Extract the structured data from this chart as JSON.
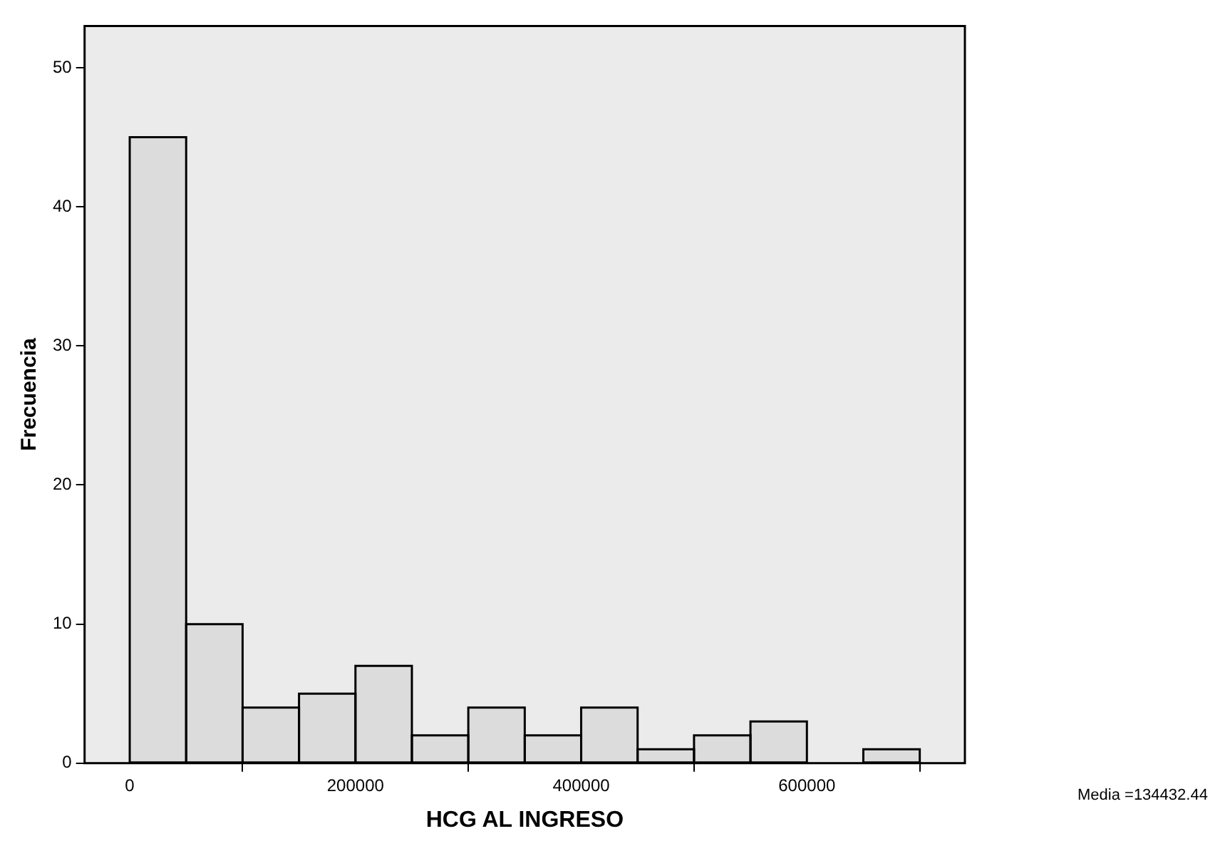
{
  "chart_data": {
    "type": "histogram",
    "xlabel": "HCG AL INGRESO",
    "ylabel": "Frecuencia",
    "bins": [
      0,
      50000,
      100000,
      150000,
      200000,
      250000,
      300000,
      350000,
      400000,
      450000,
      500000,
      550000,
      600000,
      650000,
      700000
    ],
    "values": [
      45,
      10,
      4,
      5,
      7,
      2,
      4,
      2,
      4,
      1,
      2,
      3,
      0,
      1
    ],
    "color": "#dcdcdc",
    "xlim": [
      -40000,
      740000
    ],
    "xticks": [
      0,
      200000,
      400000,
      600000
    ],
    "ylim": [
      0,
      53
    ],
    "yticks": [
      0,
      10,
      20,
      30,
      40,
      50
    ],
    "grid": false,
    "annotations": [
      "Media =134432.44"
    ]
  }
}
